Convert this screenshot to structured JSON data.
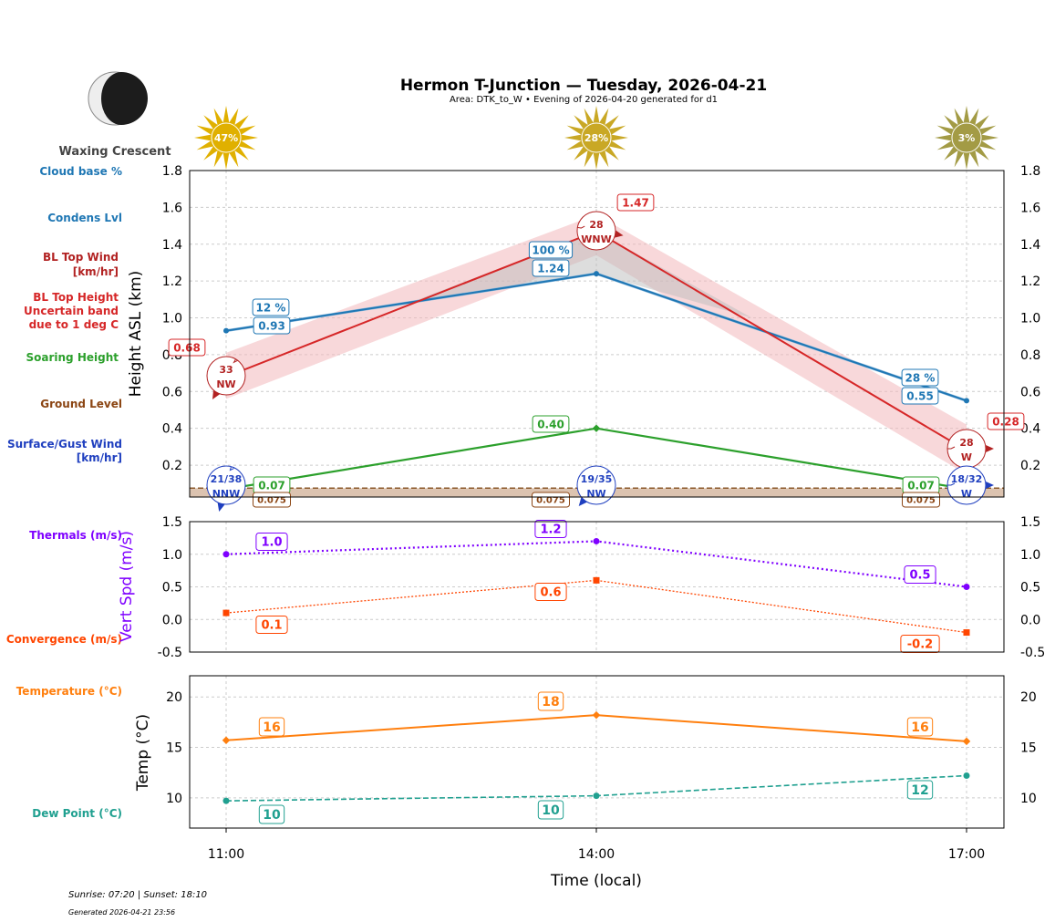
{
  "title": "Hermon T-Junction — Tuesday, 2026-04-21",
  "subtitle": "Area: DTK_to_W • Evening of 2026-04-20 generated for d1",
  "moon": {
    "phase": "Waxing Crescent",
    "icon": "moon-waxing-crescent-icon"
  },
  "sun_icons": [
    {
      "label": "47%",
      "color": "#e0b000"
    },
    {
      "label": "28%",
      "color": "#c9a825"
    },
    {
      "label": "3%",
      "color": "#a39b45"
    }
  ],
  "left_labels": {
    "cloud_base": "Cloud base %",
    "condens": "Condens Lvl",
    "bl_wind_1": "BL Top Wind",
    "bl_wind_2": "[km/hr]",
    "bl_height_1": "BL Top Height",
    "bl_height_2": "Uncertain band",
    "bl_height_3": "due to 1 deg C",
    "soaring": "Soaring Height",
    "ground": "Ground Level",
    "surface_1": "Surface/Gust Wind",
    "surface_2": "[km/hr]",
    "thermals": "Thermals (m/s)",
    "convergence": "Convergence (m/s)",
    "temperature": "Temperature (°C)",
    "dewpoint": "Dew Point (°C)"
  },
  "footer": {
    "sun": "Sunrise: 07:20 | Sunset: 18:10",
    "generated": "Generated 2026-04-21 23:56"
  },
  "colors": {
    "cloud": "#1f77b4",
    "bl": "#d62728",
    "soaring": "#2ca02c",
    "ground": "#8b4513",
    "surface": "#1f3fbf",
    "thermal": "#7f00ff",
    "conv": "#ff4500",
    "temp": "#ff7f0e",
    "dew": "#20a090"
  },
  "chart_data": [
    {
      "type": "line",
      "ylabel": "Height ASL (km)",
      "ylim": [
        0.027,
        1.8
      ],
      "yticks": [
        0.2,
        0.4,
        0.6,
        0.8,
        1.0,
        1.2,
        1.4,
        1.6,
        1.8
      ],
      "grid": true,
      "x": [
        "11:00",
        "14:00",
        "17:00"
      ],
      "series": {
        "cloud_base_pct": [
          12,
          100,
          28
        ],
        "condens_level": [
          0.93,
          1.24,
          0.55
        ],
        "bl_top": [
          0.68,
          1.47,
          0.28
        ],
        "bl_band_low": [
          0.56,
          1.34,
          0.15
        ],
        "bl_band_high": [
          0.81,
          1.56,
          0.42
        ],
        "soaring": [
          0.07,
          0.4,
          0.07
        ],
        "ground": [
          0.075,
          0.075,
          0.075
        ],
        "bl_wind": [
          {
            "speed": "33",
            "dir": "NW"
          },
          {
            "speed": "28",
            "dir": "WNW"
          },
          {
            "speed": "28",
            "dir": "W"
          }
        ],
        "surface_wind": [
          {
            "speed": "21/38",
            "dir": "NNW"
          },
          {
            "speed": "19/35",
            "dir": "NW"
          },
          {
            "speed": "18/32",
            "dir": "W"
          }
        ]
      }
    },
    {
      "type": "line",
      "ylabel": "Vert Spd (m/s)",
      "ylim": [
        -0.5,
        1.5
      ],
      "yticks": [
        -0.5,
        0.0,
        0.5,
        1.0,
        1.5
      ],
      "grid": true,
      "x": [
        "11:00",
        "14:00",
        "17:00"
      ],
      "series": {
        "thermals": [
          1.0,
          1.2,
          0.5
        ],
        "convergence": [
          0.1,
          0.6,
          -0.2
        ]
      }
    },
    {
      "type": "line",
      "ylabel": "Temp (°C)",
      "xlabel": "Time (local)",
      "ylim": [
        7,
        22.1
      ],
      "yticks": [
        10,
        15,
        20
      ],
      "grid": true,
      "x": [
        "11:00",
        "14:00",
        "17:00"
      ],
      "series": {
        "temperature": [
          15.7,
          18.2,
          15.6
        ],
        "temperature_labels": [
          "16",
          "18",
          "16"
        ],
        "dewpoint": [
          9.7,
          10.2,
          12.2
        ],
        "dewpoint_labels": [
          "10",
          "10",
          "12"
        ]
      }
    }
  ]
}
